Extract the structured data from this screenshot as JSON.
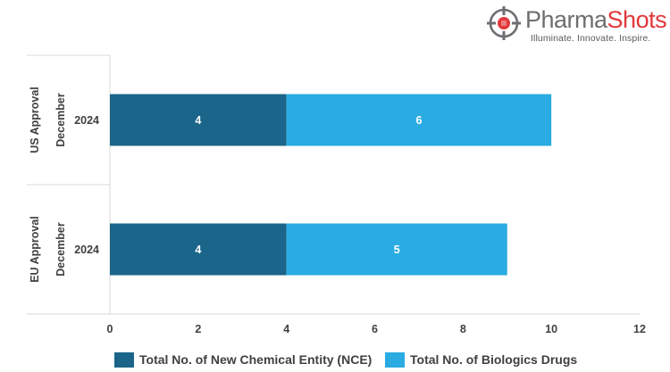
{
  "brand": {
    "name_part1": "Pharma",
    "name_part2": "Shots",
    "tagline": "Illuminate. Innovate. Inspire."
  },
  "chart_data": {
    "type": "bar",
    "orientation": "horizontal",
    "stacked": true,
    "title": "",
    "xlabel": "",
    "ylabel": "",
    "categories": [
      {
        "group": "US Approval",
        "subgroup": "December",
        "label": "2024"
      },
      {
        "group": "EU Approval",
        "subgroup": "December",
        "label": "2024"
      }
    ],
    "series": [
      {
        "name": "Total No. of New Chemical Entity (NCE)",
        "values": [
          4,
          4
        ],
        "color": "#1a6589"
      },
      {
        "name": "Total No. of Biologics Drugs",
        "values": [
          6,
          5
        ],
        "color": "#2aabe2"
      }
    ],
    "xlim": [
      0,
      12
    ],
    "xticks": [
      "0",
      "2",
      "4",
      "6",
      "8",
      "10",
      "12"
    ],
    "data_labels": true,
    "grid": false,
    "legend_position": "bottom"
  }
}
